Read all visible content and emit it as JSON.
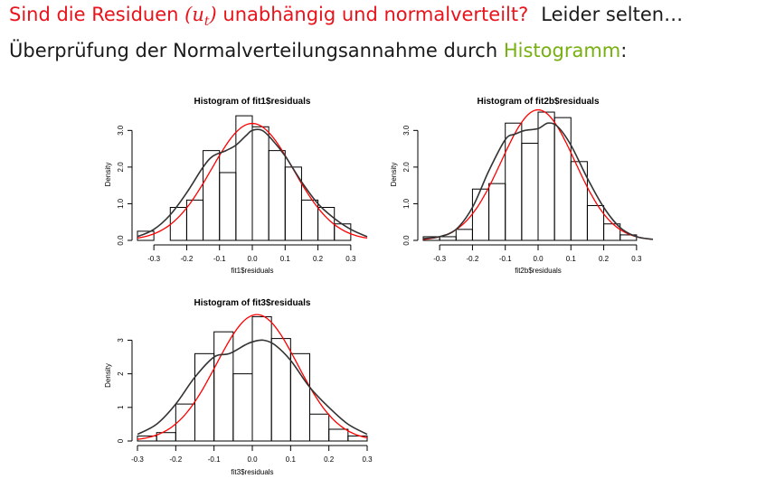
{
  "slide": {
    "headline_question_pre": "Sind die Residuen ",
    "headline_math_open": "(",
    "headline_math_var": "u",
    "headline_math_sub": "t",
    "headline_math_close": ")",
    "headline_question_post": " unabhängig und normalverteilt?",
    "headline_tail": "Leider selten…",
    "subline_pre": "Überprüfung der Normalverteilungsannahme durch ",
    "subline_highlight": "Histogramm",
    "subline_post": ":",
    "colors": {
      "question": "#e8131b",
      "highlight": "#77b010",
      "normal_curve": "#ff0000",
      "density_curve": "#333333"
    }
  },
  "chart_data": [
    {
      "type": "bar",
      "title": "Histogram of fit1$residuals",
      "xlabel": "fit1$residuals",
      "ylabel": "Density",
      "bin_edges": [
        -0.35,
        -0.3,
        -0.25,
        -0.2,
        -0.15,
        -0.1,
        -0.05,
        0.0,
        0.05,
        0.1,
        0.15,
        0.2,
        0.25,
        0.3,
        0.35
      ],
      "values": [
        0.25,
        0.0,
        0.9,
        1.1,
        2.45,
        1.85,
        3.4,
        3.1,
        2.45,
        2.0,
        1.1,
        0.9,
        0.45,
        0.0
      ],
      "xlim": [
        -0.35,
        0.35
      ],
      "ylim": [
        0,
        3.6
      ],
      "xticks": [
        -0.3,
        -0.2,
        -0.1,
        0.0,
        0.1,
        0.2,
        0.3
      ],
      "xtick_labels": [
        "-0.3",
        "-0.2",
        "-0.1",
        "0.0",
        "0.1",
        "0.2",
        "0.3"
      ],
      "yticks": [
        0.0,
        1.0,
        2.0,
        3.0
      ],
      "ytick_labels": [
        "0.0",
        "1.0",
        "2.0",
        "3.0"
      ],
      "normal_curve": {
        "mean": 0.0,
        "sd": 0.125
      },
      "density_curve": {
        "x": [
          -0.35,
          -0.3,
          -0.25,
          -0.2,
          -0.15,
          -0.12,
          -0.08,
          -0.05,
          -0.02,
          0.0,
          0.03,
          0.06,
          0.1,
          0.15,
          0.2,
          0.25,
          0.3,
          0.35
        ],
        "y": [
          0.1,
          0.3,
          0.7,
          1.3,
          2.0,
          2.3,
          2.45,
          2.6,
          2.85,
          3.0,
          3.0,
          2.75,
          2.3,
          1.6,
          1.0,
          0.6,
          0.3,
          0.1
        ]
      }
    },
    {
      "type": "bar",
      "title": "Histogram of fit2b$residuals",
      "xlabel": "fit2b$residuals",
      "ylabel": "Density",
      "bin_edges": [
        -0.35,
        -0.3,
        -0.25,
        -0.2,
        -0.15,
        -0.1,
        -0.05,
        0.0,
        0.05,
        0.1,
        0.15,
        0.2,
        0.25,
        0.3,
        0.35
      ],
      "values": [
        0.1,
        0.1,
        0.3,
        1.4,
        1.55,
        3.2,
        2.65,
        3.5,
        3.35,
        2.15,
        0.95,
        0.45,
        0.15,
        0.0
      ],
      "xlim": [
        -0.35,
        0.35
      ],
      "ylim": [
        0,
        3.6
      ],
      "xticks": [
        -0.3,
        -0.2,
        -0.1,
        0.0,
        0.1,
        0.2,
        0.3
      ],
      "xtick_labels": [
        "-0.3",
        "-0.2",
        "-0.1",
        "0.0",
        "0.1",
        "0.2",
        "0.3"
      ],
      "yticks": [
        0.0,
        1.0,
        2.0,
        3.0
      ],
      "ytick_labels": [
        "0.0",
        "1.0",
        "2.0",
        "3.0"
      ],
      "normal_curve": {
        "mean": 0.0,
        "sd": 0.112
      },
      "density_curve": {
        "x": [
          -0.35,
          -0.3,
          -0.25,
          -0.2,
          -0.15,
          -0.1,
          -0.07,
          -0.04,
          0.0,
          0.03,
          0.06,
          0.1,
          0.15,
          0.2,
          0.25,
          0.3,
          0.35
        ],
        "y": [
          0.05,
          0.1,
          0.3,
          0.9,
          1.9,
          2.75,
          2.9,
          3.0,
          3.05,
          3.2,
          3.1,
          2.6,
          1.7,
          0.9,
          0.35,
          0.1,
          0.03
        ]
      }
    },
    {
      "type": "bar",
      "title": "Histogram of fit3$residuals",
      "xlabel": "fit3$residuals",
      "ylabel": "Density",
      "bin_edges": [
        -0.3,
        -0.25,
        -0.2,
        -0.15,
        -0.1,
        -0.05,
        0.0,
        0.05,
        0.1,
        0.15,
        0.2,
        0.25,
        0.3
      ],
      "values": [
        0.15,
        0.25,
        1.1,
        2.6,
        3.25,
        2.0,
        3.7,
        3.05,
        2.6,
        0.8,
        0.35,
        0.15
      ],
      "xlim": [
        -0.3,
        0.3
      ],
      "ylim": [
        0,
        3.9
      ],
      "xticks": [
        -0.3,
        -0.2,
        -0.1,
        0.0,
        0.1,
        0.2,
        0.3
      ],
      "xtick_labels": [
        "-0.3",
        "-0.2",
        "-0.1",
        "0.0",
        "0.1",
        "0.2",
        "0.3"
      ],
      "yticks": [
        0,
        1,
        2,
        3
      ],
      "ytick_labels": [
        "0",
        "1",
        "2",
        "3"
      ],
      "normal_curve": {
        "mean": 0.012,
        "sd": 0.106
      },
      "density_curve": {
        "x": [
          -0.3,
          -0.25,
          -0.2,
          -0.15,
          -0.1,
          -0.06,
          -0.02,
          0.0,
          0.03,
          0.06,
          0.1,
          0.15,
          0.2,
          0.25,
          0.3
        ],
        "y": [
          0.2,
          0.5,
          1.1,
          1.9,
          2.5,
          2.6,
          2.85,
          2.95,
          3.0,
          2.85,
          2.4,
          1.6,
          1.0,
          0.5,
          0.2
        ]
      }
    }
  ]
}
